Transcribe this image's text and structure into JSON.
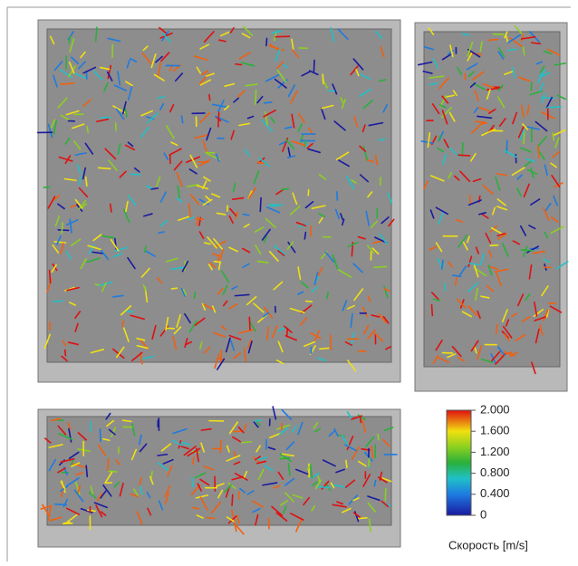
{
  "colorbar": {
    "label": "Скорость [m/s]",
    "range": [
      0,
      2
    ],
    "ticks": [
      {
        "value": 2,
        "label": "2.000"
      },
      {
        "value": 1.6,
        "label": "1.600"
      },
      {
        "value": 1.2,
        "label": "1.200"
      },
      {
        "value": 0.8,
        "label": "0.800"
      },
      {
        "value": 0.4,
        "label": "0.400"
      },
      0
    ]
  }
}
